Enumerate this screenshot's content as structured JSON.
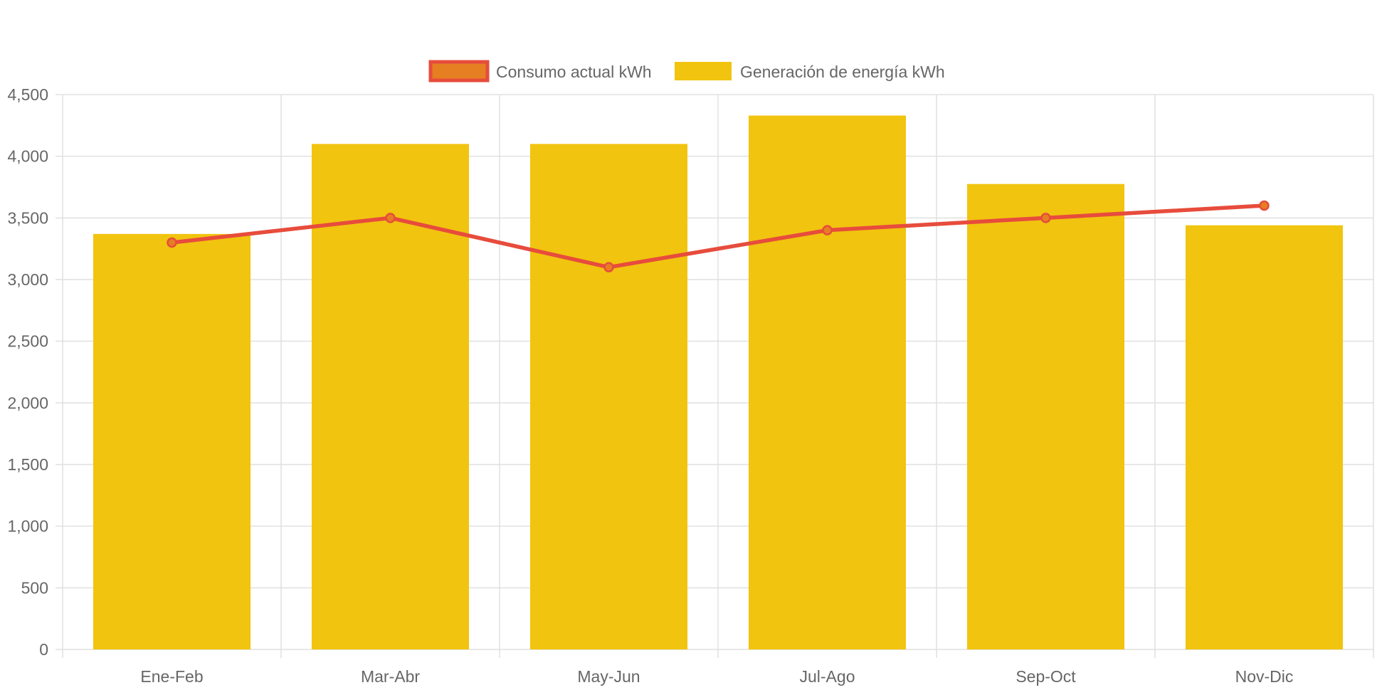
{
  "chart_data": {
    "type": "bar",
    "categories": [
      "Ene-Feb",
      "Mar-Abr",
      "May-Jun",
      "Jul-Ago",
      "Sep-Oct",
      "Nov-Dic"
    ],
    "series": [
      {
        "name": "Consumo actual kWh",
        "type": "line",
        "values": [
          3300,
          3500,
          3100,
          3400,
          3500,
          3600
        ],
        "line_color": "#e74c3c",
        "point_color": "#e67e22"
      },
      {
        "name": "Generación de energía kWh",
        "type": "bar",
        "values": [
          3370,
          4100,
          4100,
          4330,
          3775,
          3440
        ],
        "color": "#f1c40f"
      }
    ],
    "ylim": [
      0,
      4500
    ],
    "yticks": [
      "0",
      "500",
      "1,000",
      "1,500",
      "2,000",
      "2,500",
      "3,000",
      "3,500",
      "4,000",
      "4,500"
    ],
    "ytick_values": [
      0,
      500,
      1000,
      1500,
      2000,
      2500,
      3000,
      3500,
      4000,
      4500
    ],
    "grid": true,
    "legend": "top-center",
    "title": "",
    "xlabel": "",
    "ylabel": "",
    "colors": {
      "grid": "#e0e0e0",
      "axis_text": "#666666"
    }
  }
}
